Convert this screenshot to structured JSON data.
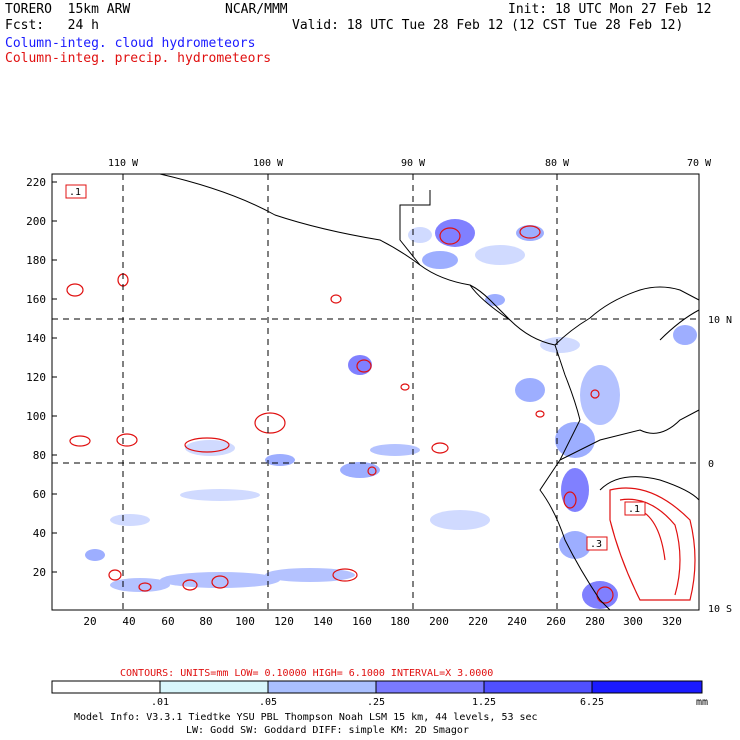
{
  "header": {
    "model": "TORERO  15km ARW",
    "org": "NCAR/MMM",
    "init": "Init: 18 UTC Mon 27 Feb 12",
    "fcst": "Fcst:   24 h",
    "valid": "Valid: 18 UTC Tue 28 Feb 12 (12 CST Tue 28 Feb 12)",
    "line_blue": "Column-integ. cloud hydrometeors",
    "line_red": "Column-integ. precip. hydrometeors"
  },
  "colors": {
    "cloud_fill": "#5a5aff",
    "precip_contour": "#e01010",
    "land_border": "#000000"
  },
  "map": {
    "lon_labels": [
      "110 W",
      "100 W",
      "90 W",
      "80 W",
      "70 W"
    ],
    "lat_labels": [
      "10 N",
      "0",
      "10 S"
    ],
    "y_ticks": [
      "220",
      "200",
      "180",
      "160",
      "140",
      "120",
      "100",
      "80",
      "60",
      "40",
      "20"
    ],
    "x_ticks": [
      "20",
      "40",
      "60",
      "80",
      "100",
      "120",
      "140",
      "160",
      "180",
      "200",
      "220",
      "240",
      "260",
      "280",
      "300",
      "320"
    ],
    "contour_labels": [
      ".1",
      ".1",
      ".3"
    ]
  },
  "contours_info": {
    "label": "CONTOURS:  UNITS=mm  LOW= 0.10000       HIGH=  6.1000       INTERVAL=X  3.0000"
  },
  "colorbar": {
    "ticks": [
      ".01",
      ".05",
      ".25",
      "1.25",
      "6.25"
    ],
    "unit": "mm",
    "colors": [
      "#ffffff",
      "#d8f6fb",
      "#aac0ff",
      "#7a7aff",
      "#5050ff",
      "#1a1aff"
    ]
  },
  "footer": {
    "line1": "Model Info: V3.3.1   Tiedtke YSU PBL  Thompson    Noah LSM  15 km,   44 levels,   53 sec",
    "line2": "LW: Godd SW: Goddard DIFF: simple KM: 2D Smagor"
  }
}
